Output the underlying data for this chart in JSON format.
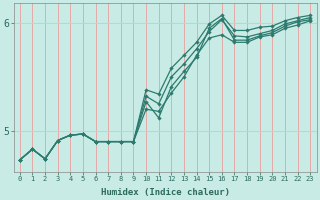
{
  "xlabel": "Humidex (Indice chaleur)",
  "background_color": "#c8ebe5",
  "plot_bg_color": "#c8ebe5",
  "line_color": "#2d7a6e",
  "grid_color_v": "#e8a0a0",
  "grid_color_h": "#b0dcd6",
  "xlim": [
    -0.5,
    23.5
  ],
  "ylim": [
    4.62,
    6.18
  ],
  "yticks": [
    5,
    6
  ],
  "xticks": [
    0,
    1,
    2,
    3,
    4,
    5,
    6,
    7,
    8,
    9,
    10,
    11,
    12,
    13,
    14,
    15,
    16,
    17,
    18,
    19,
    20,
    21,
    22,
    23
  ],
  "lines": [
    [
      4.73,
      4.83,
      4.74,
      4.91,
      4.96,
      4.97,
      4.9,
      4.9,
      4.9,
      4.9,
      5.38,
      5.34,
      5.58,
      5.7,
      5.82,
      5.99,
      6.07,
      5.93,
      5.93,
      5.96,
      5.97,
      6.02,
      6.05,
      6.07
    ],
    [
      4.73,
      4.83,
      4.74,
      4.91,
      4.96,
      4.97,
      4.9,
      4.9,
      4.9,
      4.9,
      5.32,
      5.25,
      5.5,
      5.62,
      5.76,
      5.92,
      6.03,
      5.88,
      5.87,
      5.9,
      5.93,
      5.99,
      6.02,
      6.05
    ],
    [
      4.73,
      4.83,
      4.74,
      4.91,
      4.96,
      4.97,
      4.9,
      4.9,
      4.9,
      4.9,
      5.27,
      5.12,
      5.41,
      5.55,
      5.68,
      5.95,
      6.04,
      5.84,
      5.84,
      5.88,
      5.91,
      5.97,
      6.01,
      6.03
    ],
    [
      4.73,
      4.83,
      4.74,
      4.91,
      4.96,
      4.97,
      4.9,
      4.9,
      4.9,
      4.9,
      5.2,
      5.18,
      5.35,
      5.5,
      5.7,
      5.86,
      5.89,
      5.82,
      5.82,
      5.87,
      5.89,
      5.95,
      5.98,
      6.02
    ]
  ]
}
